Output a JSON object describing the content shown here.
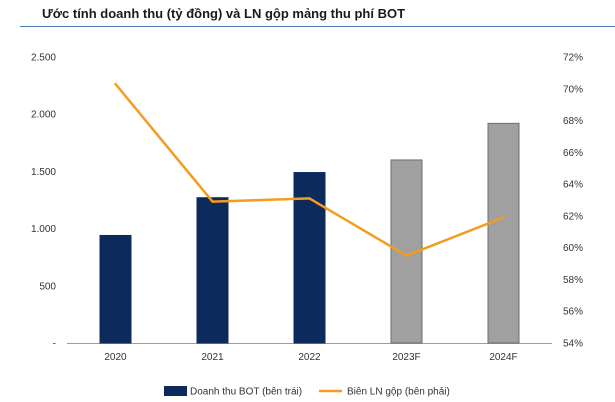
{
  "title": "Ước tính doanh thu (tỷ đồng) và LN gộp mảng thu phí BOT",
  "colors": {
    "bar_actual": "#0d2a5c",
    "bar_forecast": "#a0a0a0",
    "bar_forecast_stroke": "#6e6e6e",
    "line": "#f39c1f",
    "axis": "#9e9e9e"
  },
  "chart_data": {
    "type": "bar+line",
    "title": "Ước tính doanh thu (tỷ đồng) và LN gộp mảng thu phí BOT",
    "categories": [
      "2020",
      "2021",
      "2022",
      "2023F",
      "2024F"
    ],
    "forecast_flags": [
      false,
      false,
      false,
      true,
      true
    ],
    "series": [
      {
        "name": "Doanh thu BOT (bên trái)",
        "type": "bar",
        "axis": "left",
        "values": [
          940,
          1270,
          1490,
          1600,
          1920
        ]
      },
      {
        "name": "Biên LN gộp (bên phải)",
        "type": "line",
        "axis": "right",
        "values": [
          70.3,
          62.9,
          63.1,
          59.5,
          61.9
        ]
      }
    ],
    "left_axis": {
      "min": 0,
      "max": 2500,
      "tick_labels": [
        "-",
        "500",
        "1.000",
        "1.500",
        "2.000",
        "2.500"
      ]
    },
    "right_axis": {
      "min": 54,
      "max": 72,
      "tick_labels": [
        "54%",
        "56%",
        "58%",
        "60%",
        "62%",
        "64%",
        "66%",
        "68%",
        "70%",
        "72%"
      ]
    },
    "legend_position": "bottom"
  }
}
